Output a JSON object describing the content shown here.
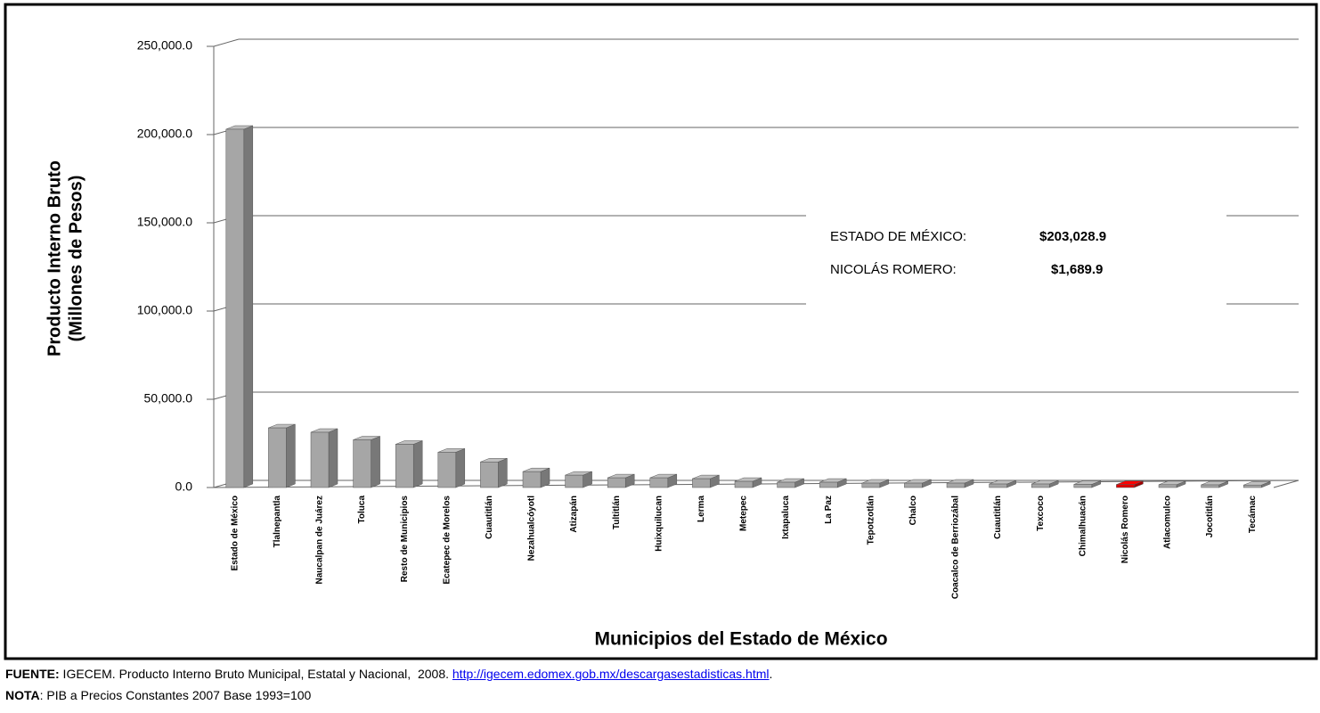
{
  "chart_data": {
    "type": "bar3d",
    "ylabel": [
      "Producto Interno Bruto",
      "(Millones de Pesos)"
    ],
    "xlabel": "Municipios del Estado de México",
    "categories": [
      "Estado de México",
      "Tlalnepantla",
      "Naucalpan de Juárez",
      "Toluca",
      "Resto de Municipios",
      "Ecatepec de Morelos",
      "Cuautitlán",
      "Nezahualcóyotl",
      "Atizapán",
      "Tultitlán",
      "Huixquilucan",
      "Lerma",
      "Metepec",
      "Ixtapaluca",
      "La Paz",
      "Tepotzotlán",
      "Chalco",
      "Coacalco de Berriozábal",
      "Cuautitlán",
      "Texcoco",
      "Chimalhuacán",
      "Nicolás Romero",
      "Atlacomulco",
      "Jocotitlán",
      "Tecámac"
    ],
    "values": [
      203028.9,
      33800,
      31300,
      27000,
      24500,
      20000,
      14500,
      9000,
      7000,
      5500,
      5500,
      5000,
      3500,
      3000,
      3000,
      2500,
      2500,
      2500,
      2000,
      2000,
      1800,
      1689.9,
      1600,
      1500,
      1400
    ],
    "colors": [
      "#a6a6a6",
      "#a6a6a6",
      "#a6a6a6",
      "#a6a6a6",
      "#a6a6a6",
      "#a6a6a6",
      "#a6a6a6",
      "#a6a6a6",
      "#a6a6a6",
      "#a6a6a6",
      "#a6a6a6",
      "#a6a6a6",
      "#a6a6a6",
      "#a6a6a6",
      "#a6a6a6",
      "#a6a6a6",
      "#a6a6a6",
      "#a6a6a6",
      "#a6a6a6",
      "#a6a6a6",
      "#a6a6a6",
      "#e00000",
      "#a6a6a6",
      "#a6a6a6",
      "#a6a6a6"
    ],
    "ylim": [
      0,
      250000
    ],
    "yticks": [
      {
        "value": 0,
        "label": "0.0"
      },
      {
        "value": 50000,
        "label": "50,000.0"
      },
      {
        "value": 100000,
        "label": "100,000.0"
      },
      {
        "value": 150000,
        "label": "150,000.0"
      },
      {
        "value": 200000,
        "label": "200,000.0"
      },
      {
        "value": 250000,
        "label": "250,000.0"
      }
    ],
    "grid": true,
    "annotations": [
      {
        "label": "ESTADO DE MÉXICO:",
        "value": "$203,028.9"
      },
      {
        "label": "NICOLÁS ROMERO:",
        "value": "$1,689.9"
      }
    ]
  },
  "footer": {
    "source_label": "FUENTE:",
    "source_text": " IGECEM. Producto Interno Bruto Municipal, Estatal y Nacional,  2008. ",
    "source_link": "http://igecem.edomex.gob.mx/descargasestadisticas.html",
    "source_end": ".",
    "note_label": "NOTA",
    "note_text": ": PIB a Precios Constantes 2007 Base 1993=100"
  }
}
